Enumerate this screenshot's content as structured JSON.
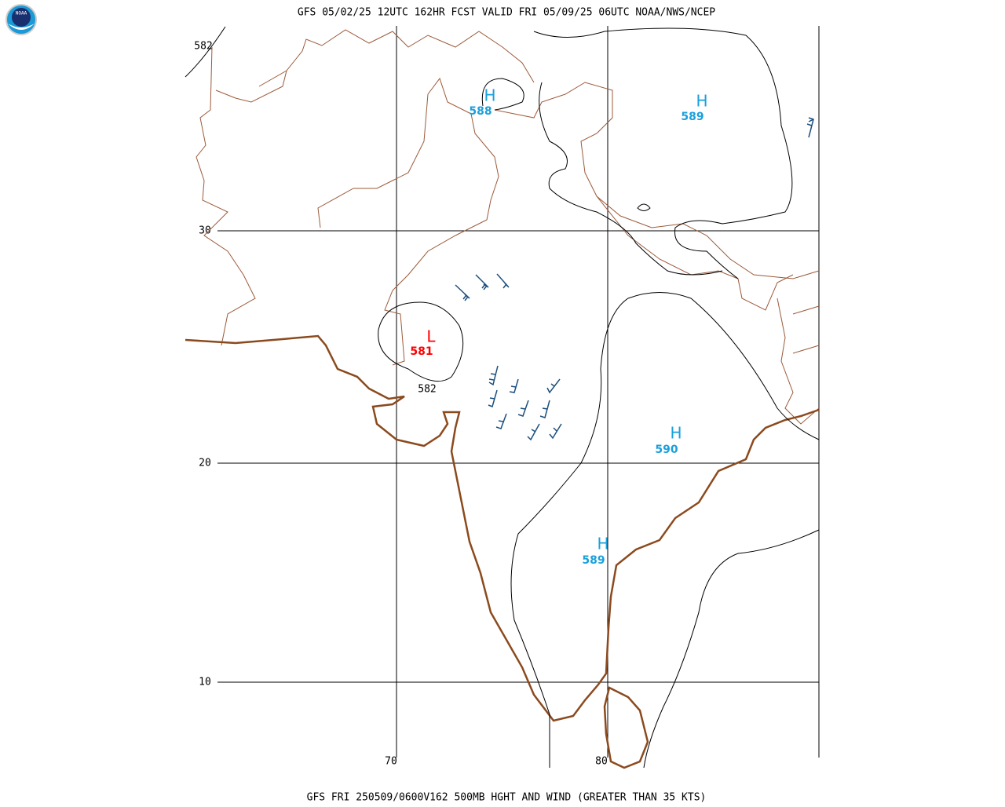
{
  "header": {
    "title": "GFS 05/02/25 12UTC 162HR FCST VALID FRI 05/09/25 06UTC NOAA/NWS/NCEP",
    "logo": "NOAA"
  },
  "footer": {
    "caption": "GFS FRI 250509/0600V162 500MB HGHT AND WIND (GREATER THAN 35 KTS)"
  },
  "map": {
    "latitude_labels": [
      "30",
      "20",
      "10"
    ],
    "longitude_labels": [
      "70",
      "80"
    ],
    "contour_labels": [
      "582",
      "582"
    ],
    "systems": [
      {
        "symbol": "H",
        "value": "588"
      },
      {
        "symbol": "H",
        "value": "589"
      },
      {
        "symbol": "L",
        "value": "581"
      },
      {
        "symbol": "H",
        "value": "590"
      },
      {
        "symbol": "H",
        "value": "589"
      }
    ]
  }
}
